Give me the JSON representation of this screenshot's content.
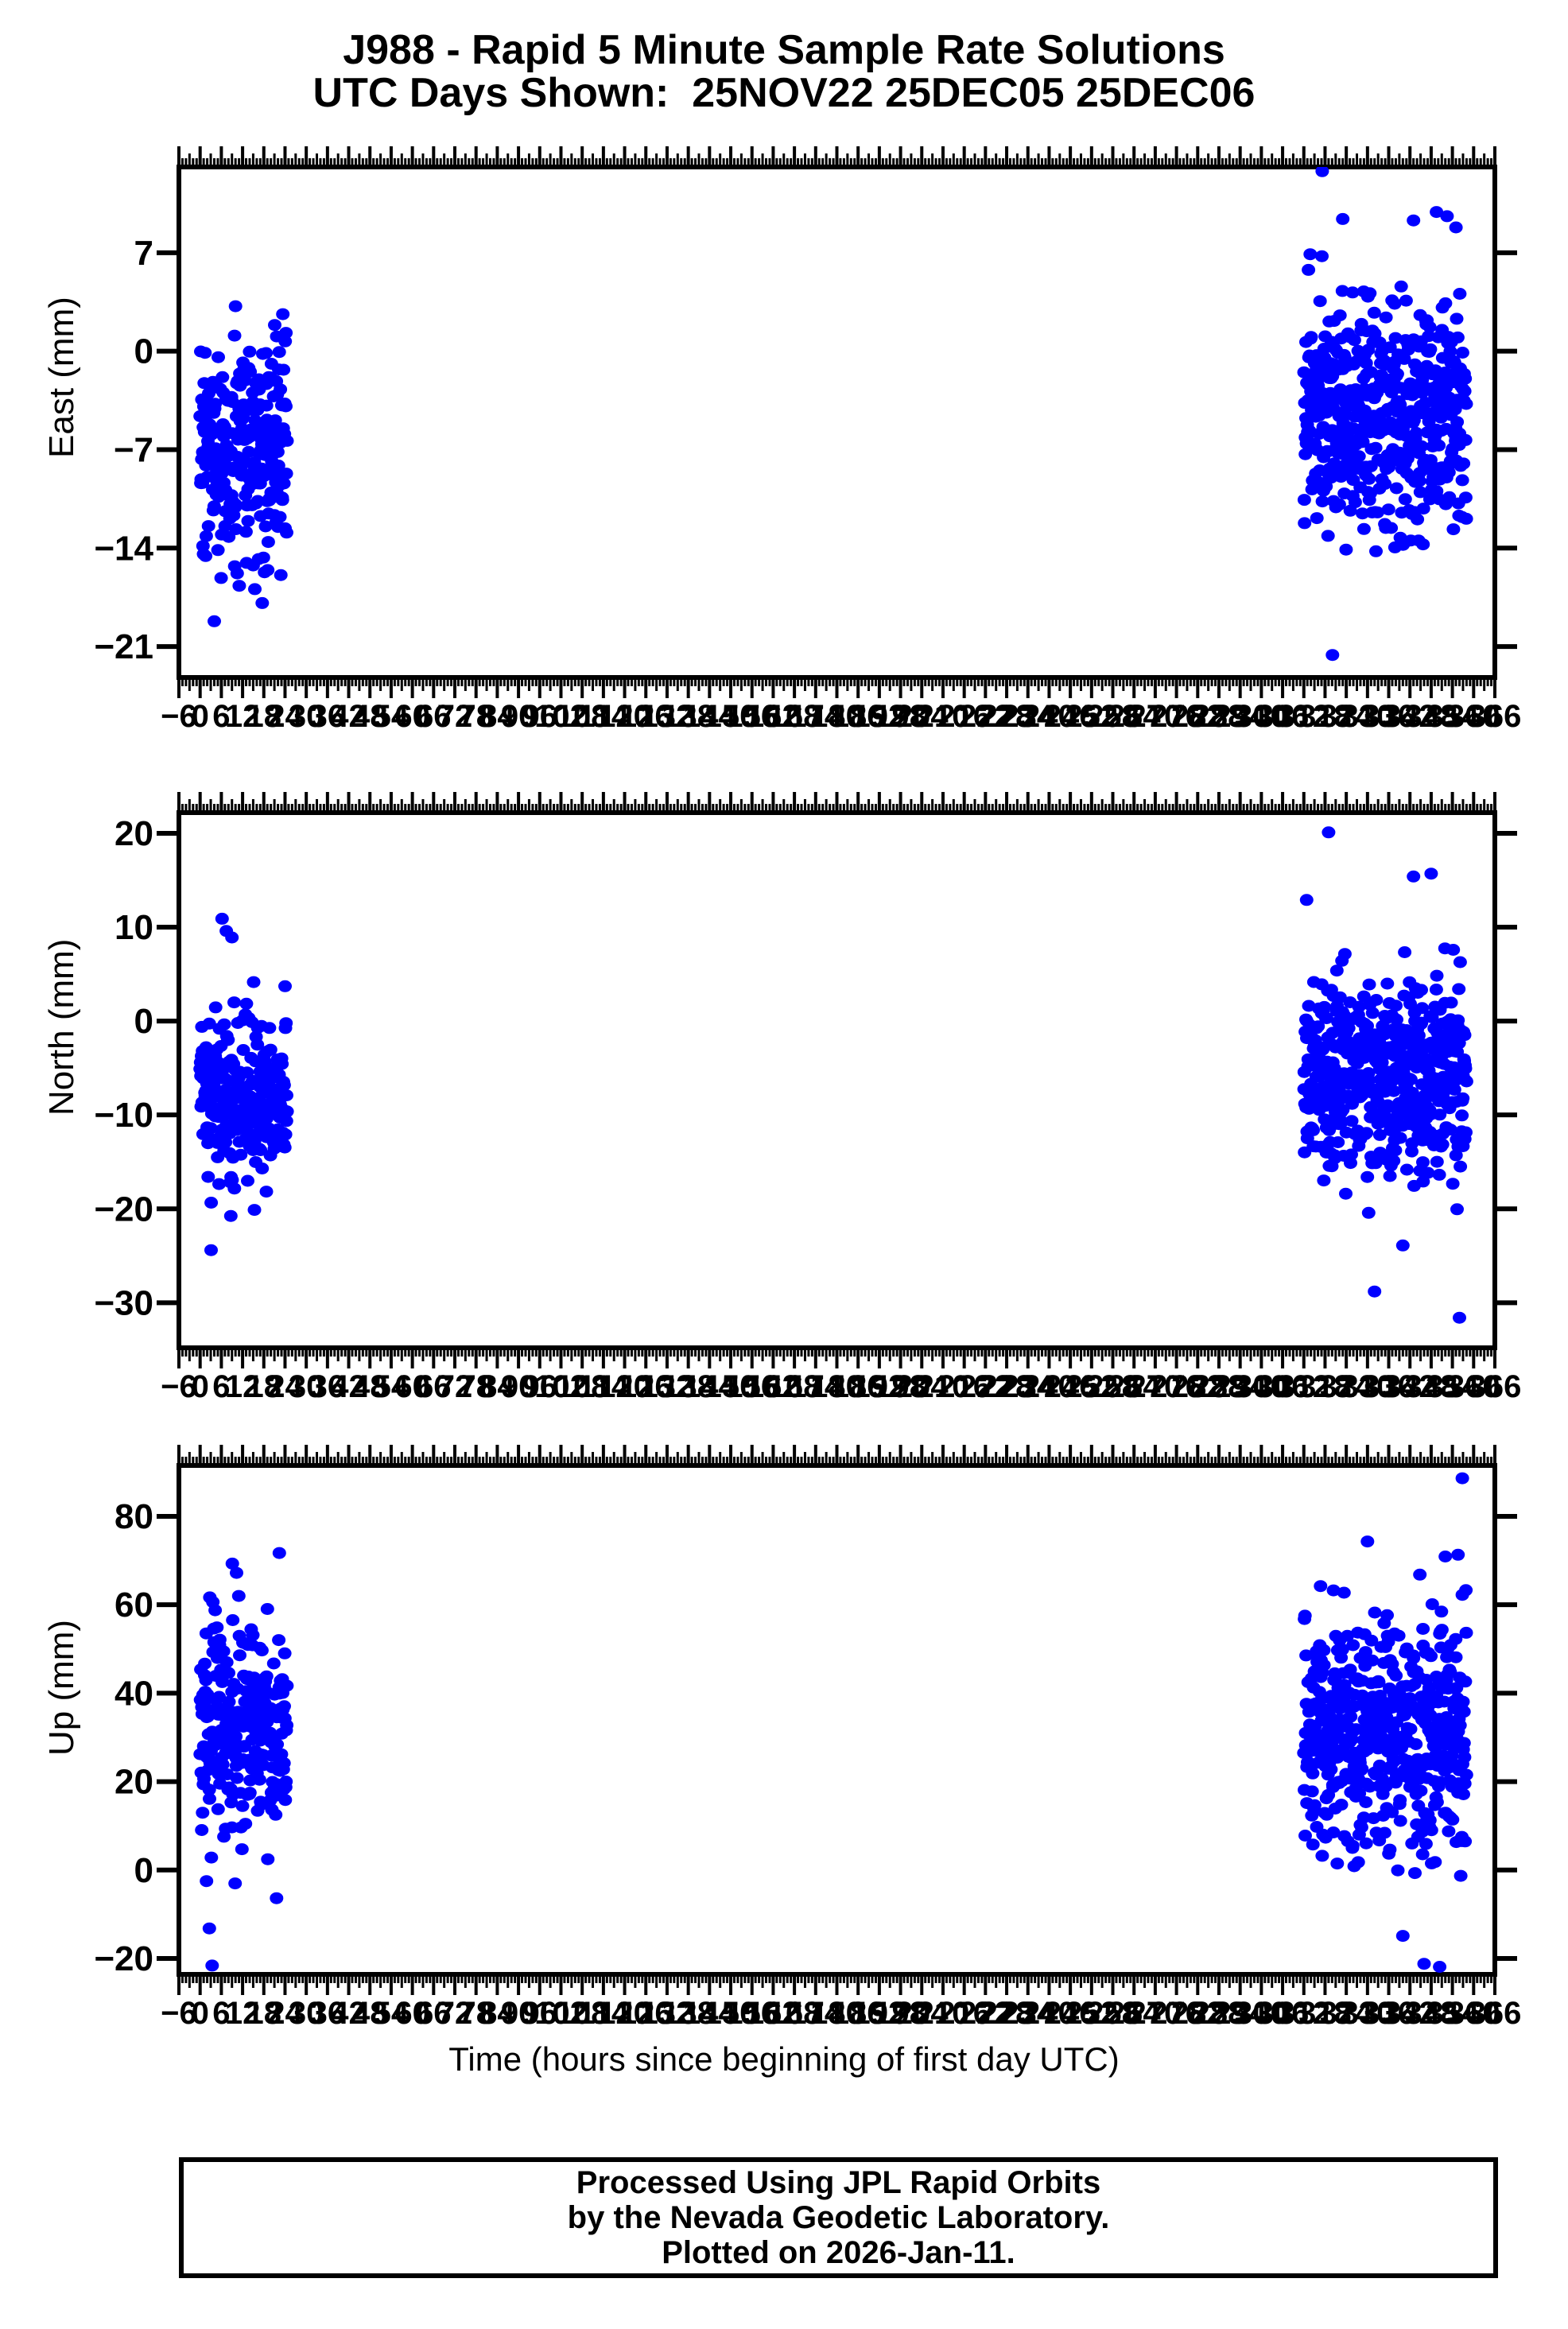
{
  "title": {
    "line1": "J988 - Rapid 5 Minute Sample Rate Solutions",
    "line2": "UTC Days Shown:  25NOV22 25DEC05 25DEC06"
  },
  "xaxis": {
    "title": "Time (hours since beginning of first day UTC)",
    "start": -6,
    "end": 366,
    "label_step": 6,
    "medium_step": 3,
    "minor_step": 1
  },
  "footer": {
    "lines": [
      "Processed Using JPL Rapid Orbits",
      "by the Nevada Geodetic Laboratory.",
      "Plotted on 2026-Jan-11."
    ]
  },
  "colors": {
    "point": "#0000ff",
    "axis": "#000000",
    "text": "#000000",
    "background": "#ffffff"
  },
  "chart_data": [
    {
      "type": "scatter",
      "name": "east",
      "ylabel": "East (mm)",
      "xlabel": "Time (hours since beginning of first day UTC)",
      "yticks": [
        7,
        0,
        -7,
        -14,
        -21
      ],
      "ylim": [
        -23.2,
        13.1
      ],
      "xlim": [
        -6,
        366
      ],
      "grid": false,
      "legend": "none",
      "clusters": [
        {
          "hours": [
            0,
            24.6
          ],
          "n": 265,
          "mean": -7.3,
          "std": 3.9,
          "clip": [
            -19.3,
            3.4
          ]
        },
        {
          "hours": [
            312,
            358
          ],
          "n": 520,
          "mean": -4.7,
          "std": 4.1,
          "clip": [
            -16.5,
            10.2
          ]
        }
      ],
      "outliers": [
        [
          317.2,
          12.8
        ],
        [
          320.1,
          -21.6
        ],
        [
          323.0,
          9.4
        ],
        [
          343.0,
          9.3
        ],
        [
          349.5,
          9.9
        ],
        [
          355.0,
          8.8
        ],
        [
          352.5,
          9.6
        ],
        [
          313.8,
          6.9
        ],
        [
          10.0,
          3.2
        ],
        [
          4.0,
          -19.2
        ]
      ]
    },
    {
      "type": "scatter",
      "name": "north",
      "ylabel": "North (mm)",
      "xlabel": "Time (hours since beginning of first day UTC)",
      "yticks": [
        20,
        10,
        0,
        -10,
        -20,
        -30
      ],
      "ylim": [
        -34.8,
        22.2
      ],
      "xlim": [
        -6,
        366
      ],
      "grid": false,
      "legend": "none",
      "clusters": [
        {
          "hours": [
            0,
            24.6
          ],
          "n": 265,
          "mean": -8.6,
          "std": 4.6,
          "clip": [
            -22.5,
            8.4
          ]
        },
        {
          "hours": [
            312,
            358
          ],
          "n": 520,
          "mean": -6.2,
          "std": 5.0,
          "clip": [
            -24.0,
            13.2
          ]
        }
      ],
      "outliers": [
        [
          3.1,
          -24.4
        ],
        [
          6.2,
          10.9
        ],
        [
          7.4,
          9.6
        ],
        [
          9.0,
          8.9
        ],
        [
          319.0,
          20.1
        ],
        [
          332.0,
          -28.8
        ],
        [
          356.0,
          -31.6
        ],
        [
          343.0,
          15.4
        ],
        [
          348.0,
          15.7
        ],
        [
          312.8,
          12.9
        ],
        [
          340.0,
          -23.9
        ]
      ]
    },
    {
      "type": "scatter",
      "name": "up",
      "ylabel": "Up (mm)",
      "xlabel": "Time (hours since beginning of first day UTC)",
      "yticks": [
        80,
        60,
        40,
        20,
        0,
        -20
      ],
      "ylim": [
        -23.6,
        91.5
      ],
      "xlim": [
        -6,
        366
      ],
      "grid": false,
      "legend": "none",
      "clusters": [
        {
          "hours": [
            0,
            24.6
          ],
          "n": 265,
          "mean": 31.5,
          "std": 13.0,
          "clip": [
            -9.0,
            66.0
          ]
        },
        {
          "hours": [
            312,
            358
          ],
          "n": 520,
          "mean": 31.0,
          "std": 13.5,
          "clip": [
            -12.0,
            68.0
          ]
        }
      ],
      "outliers": [
        [
          2.6,
          -13.2
        ],
        [
          3.4,
          -21.6
        ],
        [
          9.1,
          69.3
        ],
        [
          10.3,
          67.2
        ],
        [
          22.4,
          71.7
        ],
        [
          1.8,
          -2.5
        ],
        [
          330.0,
          74.3
        ],
        [
          356.8,
          88.6
        ],
        [
          352.0,
          70.9
        ],
        [
          355.6,
          71.3
        ],
        [
          340.0,
          -14.9
        ],
        [
          346.0,
          -21.2
        ],
        [
          350.4,
          -21.9
        ],
        [
          344.8,
          66.8
        ]
      ]
    }
  ]
}
